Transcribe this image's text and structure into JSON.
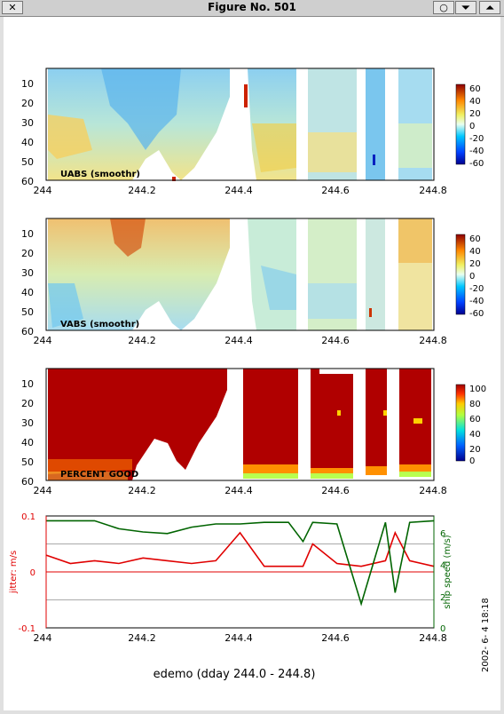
{
  "window": {
    "title": "Figure No. 501",
    "close_glyph": "✕",
    "buttons": [
      "○",
      "⏷",
      "⏶"
    ]
  },
  "colors": {
    "ocean_fill": "#c9e6f2",
    "jitter_line": "#e00000",
    "speed_line": "#006400",
    "gridline": "#aaaaaa"
  },
  "panels": {
    "uabs": {
      "label": "UABS  (smoothr)",
      "y_ticks": [
        "10",
        "20",
        "30",
        "40",
        "50",
        "60"
      ],
      "x_ticks": [
        "244",
        "244.2",
        "244.4",
        "244.6",
        "244.8"
      ],
      "colorbar_ticks": [
        "60",
        "40",
        "20",
        "0",
        "-20",
        "-40",
        "-60"
      ]
    },
    "vabs": {
      "label": "VABS  (smoothr)",
      "y_ticks": [
        "10",
        "20",
        "30",
        "40",
        "50",
        "60"
      ],
      "x_ticks": [
        "244",
        "244.2",
        "244.4",
        "244.6",
        "244.8"
      ],
      "colorbar_ticks": [
        "60",
        "40",
        "20",
        "0",
        "-20",
        "-40",
        "-60"
      ]
    },
    "pg": {
      "label": "PERCENT GOOD",
      "y_ticks": [
        "10",
        "20",
        "30",
        "40",
        "50",
        "60"
      ],
      "x_ticks": [
        "244",
        "244.2",
        "244.4",
        "244.6",
        "244.8"
      ],
      "colorbar_ticks": [
        "100",
        "80",
        "60",
        "40",
        "20",
        "0"
      ]
    }
  },
  "chart_data": {
    "type": "line",
    "x": [
      244.0,
      244.05,
      244.1,
      244.15,
      244.2,
      244.25,
      244.3,
      244.35,
      244.4,
      244.45,
      244.5,
      244.53,
      244.55,
      244.6,
      244.65,
      244.7,
      244.72,
      244.75,
      244.8
    ],
    "xlim": [
      244.0,
      244.8
    ],
    "x_ticks": [
      "244",
      "244.2",
      "244.4",
      "244.6",
      "244.8"
    ],
    "left_axis": {
      "label": "jitter: m/s",
      "ylim": [
        -0.1,
        0.1
      ],
      "ticks": [
        "0.1",
        "0",
        "-0.1"
      ]
    },
    "right_axis": {
      "label": "ship speed (m/s)",
      "ylim": [
        0,
        7
      ],
      "ticks": [
        "6",
        "4",
        "2",
        "0"
      ]
    },
    "series": [
      {
        "axis": "left",
        "values": [
          0.03,
          0.015,
          0.02,
          0.015,
          0.025,
          0.02,
          0.015,
          0.02,
          0.07,
          0.01,
          0.01,
          0.01,
          0.05,
          0.015,
          0.01,
          0.02,
          0.07,
          0.02,
          0.01
        ]
      },
      {
        "axis": "right",
        "values": [
          6.7,
          6.7,
          6.7,
          6.2,
          6.0,
          5.9,
          6.3,
          6.5,
          6.5,
          6.6,
          6.6,
          5.4,
          6.6,
          6.5,
          1.5,
          6.6,
          2.2,
          6.6,
          6.7
        ]
      }
    ],
    "hlines_left": [
      0.05,
      0,
      -0.05
    ]
  },
  "footer": {
    "caption": "edemo (dday 244.0 - 244.8)",
    "timestamp": "2002- 6- 4  18:18"
  }
}
